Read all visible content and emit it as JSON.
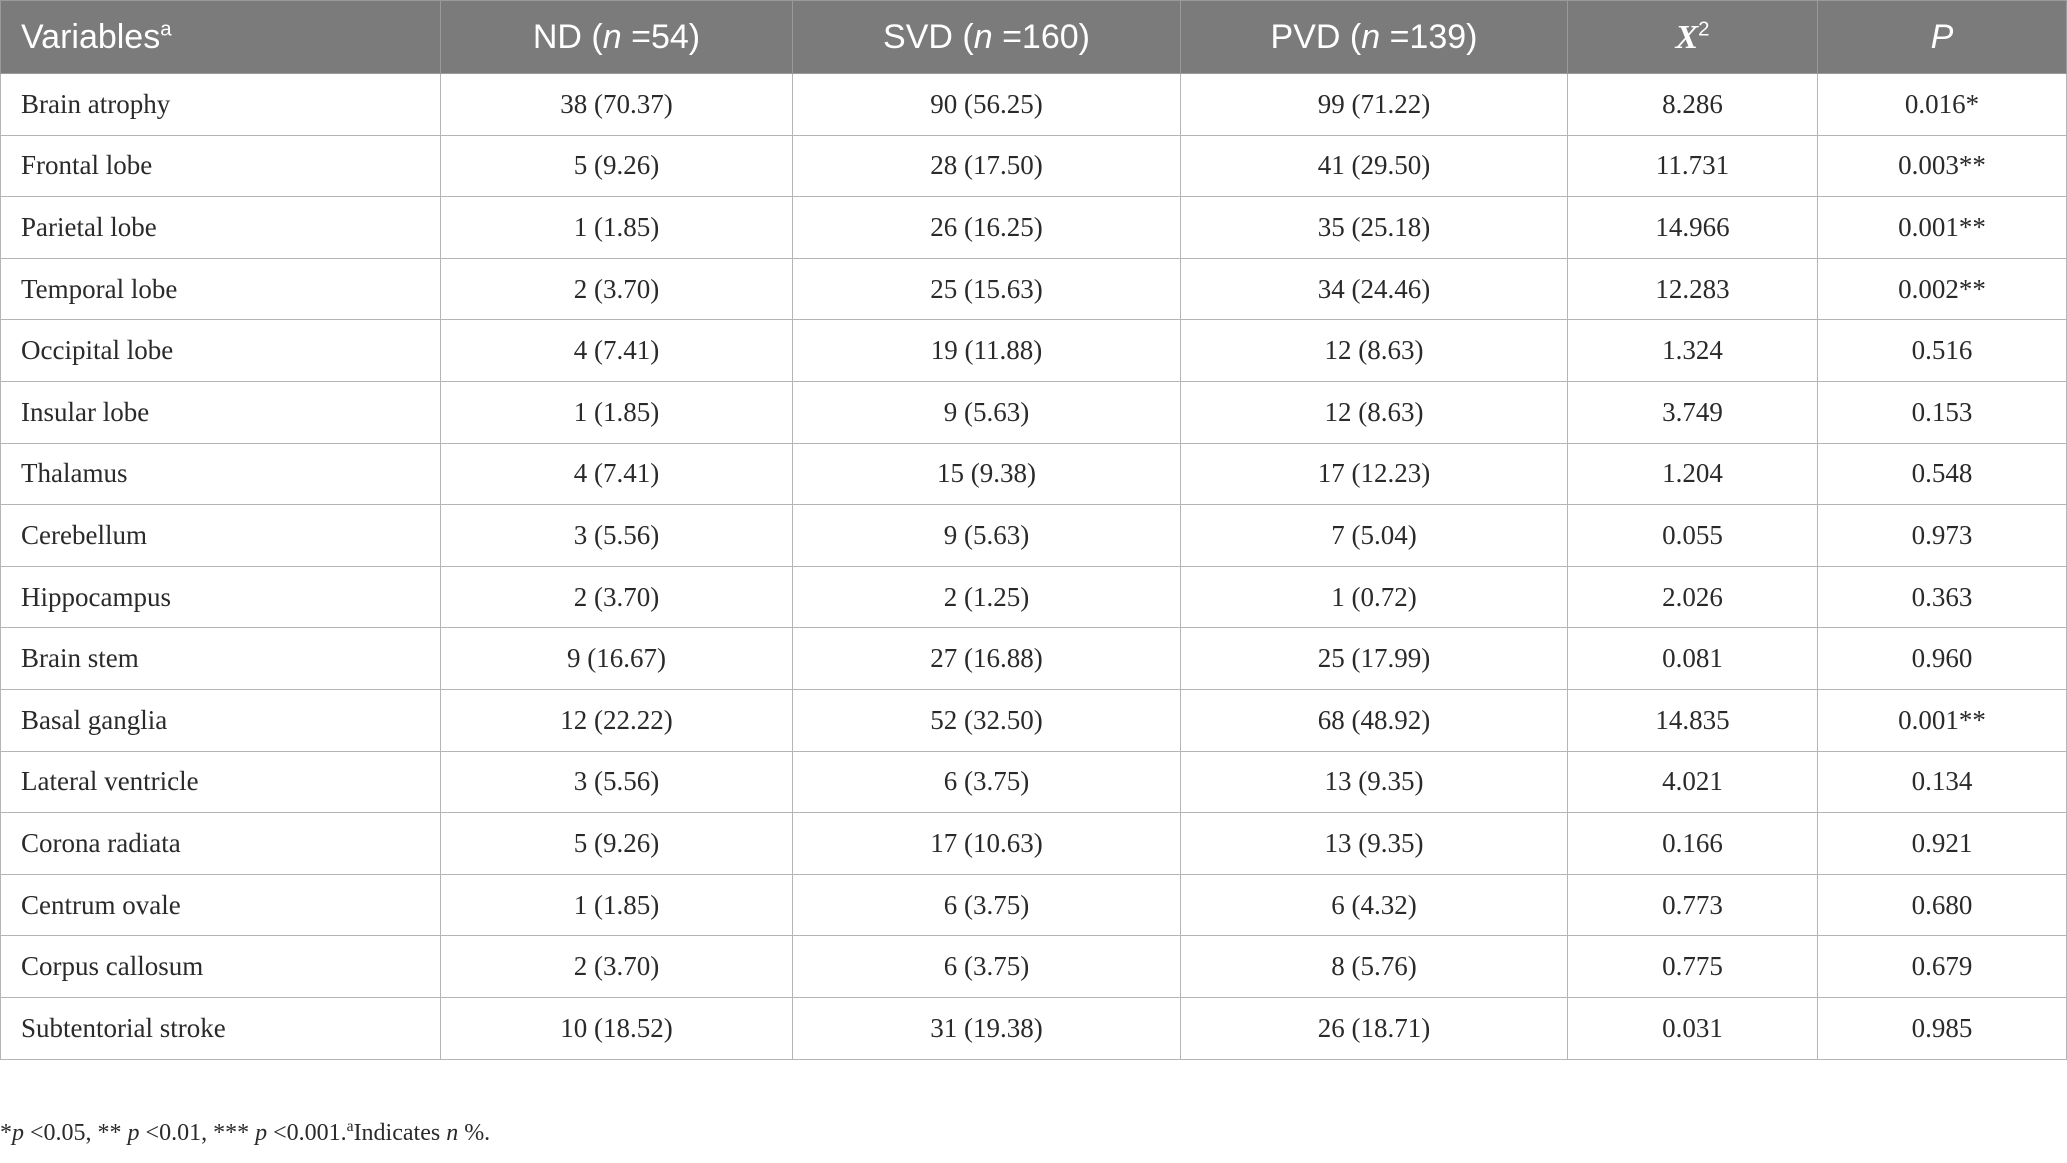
{
  "table": {
    "headers": {
      "variables": "Variables",
      "variables_sup": "a",
      "nd_prefix": "ND (",
      "nd_n": "n",
      "nd_suffix": " =54)",
      "svd_prefix": "SVD (",
      "svd_n": "n",
      "svd_suffix": " =160)",
      "pvd_prefix": "PVD (",
      "pvd_n": "n",
      "pvd_suffix": " =139)",
      "chi_x": "X",
      "chi_sup": "2",
      "p": "P"
    },
    "rows": [
      {
        "variable": "Brain atrophy",
        "nd": "38 (70.37)",
        "svd": "90 (56.25)",
        "pvd": "99 (71.22)",
        "chi2": "8.286",
        "p": "0.016*"
      },
      {
        "variable": "Frontal lobe",
        "nd": "5 (9.26)",
        "svd": "28 (17.50)",
        "pvd": "41 (29.50)",
        "chi2": "11.731",
        "p": "0.003**"
      },
      {
        "variable": "Parietal lobe",
        "nd": "1 (1.85)",
        "svd": "26 (16.25)",
        "pvd": "35 (25.18)",
        "chi2": "14.966",
        "p": "0.001**"
      },
      {
        "variable": "Temporal lobe",
        "nd": "2 (3.70)",
        "svd": "25 (15.63)",
        "pvd": "34 (24.46)",
        "chi2": "12.283",
        "p": "0.002**"
      },
      {
        "variable": "Occipital lobe",
        "nd": "4 (7.41)",
        "svd": "19 (11.88)",
        "pvd": "12 (8.63)",
        "chi2": "1.324",
        "p": "0.516"
      },
      {
        "variable": "Insular lobe",
        "nd": "1 (1.85)",
        "svd": "9 (5.63)",
        "pvd": "12 (8.63)",
        "chi2": "3.749",
        "p": "0.153"
      },
      {
        "variable": "Thalamus",
        "nd": "4 (7.41)",
        "svd": "15 (9.38)",
        "pvd": "17 (12.23)",
        "chi2": "1.204",
        "p": "0.548"
      },
      {
        "variable": "Cerebellum",
        "nd": "3 (5.56)",
        "svd": "9 (5.63)",
        "pvd": "7 (5.04)",
        "chi2": "0.055",
        "p": "0.973"
      },
      {
        "variable": "Hippocampus",
        "nd": "2 (3.70)",
        "svd": "2 (1.25)",
        "pvd": "1 (0.72)",
        "chi2": "2.026",
        "p": "0.363"
      },
      {
        "variable": "Brain stem",
        "nd": "9 (16.67)",
        "svd": "27 (16.88)",
        "pvd": "25 (17.99)",
        "chi2": "0.081",
        "p": "0.960"
      },
      {
        "variable": "Basal ganglia",
        "nd": "12 (22.22)",
        "svd": "52 (32.50)",
        "pvd": "68 (48.92)",
        "chi2": "14.835",
        "p": "0.001**"
      },
      {
        "variable": "Lateral ventricle",
        "nd": "3 (5.56)",
        "svd": "6 (3.75)",
        "pvd": "13 (9.35)",
        "chi2": "4.021",
        "p": "0.134"
      },
      {
        "variable": "Corona radiata",
        "nd": "5 (9.26)",
        "svd": "17 (10.63)",
        "pvd": "13 (9.35)",
        "chi2": "0.166",
        "p": "0.921"
      },
      {
        "variable": "Centrum ovale",
        "nd": "1 (1.85)",
        "svd": "6 (3.75)",
        "pvd": "6 (4.32)",
        "chi2": "0.773",
        "p": "0.680"
      },
      {
        "variable": "Corpus callosum",
        "nd": "2 (3.70)",
        "svd": "6 (3.75)",
        "pvd": "8 (5.76)",
        "chi2": "0.775",
        "p": "0.679"
      },
      {
        "variable": "Subtentorial stroke",
        "nd": "10 (18.52)",
        "svd": "31 (19.38)",
        "pvd": "26 (18.71)",
        "chi2": "0.031",
        "p": "0.985"
      }
    ]
  },
  "footnote": {
    "p1_sym": "*",
    "p1_var": "p",
    "p1_text": " <0.05, ** ",
    "p2_var": "p",
    "p2_text": " <0.01, *** ",
    "p3_var": "p",
    "p3_text": " <0.001.",
    "a_sup": "a",
    "a_text": "Indicates ",
    "a_var": "n",
    "a_tail": " %."
  },
  "colors": {
    "header_bg": "#7b7b7b",
    "header_text": "#ffffff",
    "grid": "#b5b5b5"
  }
}
